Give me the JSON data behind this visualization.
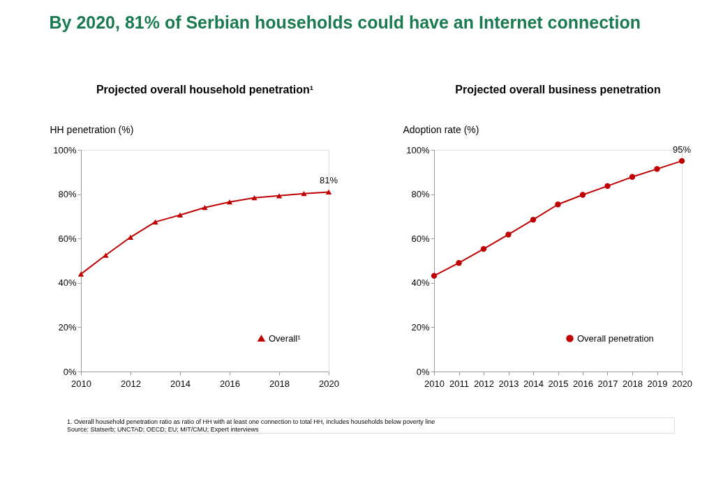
{
  "chart_data": [
    {
      "type": "line",
      "title": "Projected overall household penetration¹",
      "ylabel": "HH penetration (%)",
      "x": [
        2010,
        2011,
        2012,
        2013,
        2014,
        2015,
        2016,
        2017,
        2018,
        2019,
        2020
      ],
      "series": [
        {
          "name": "Overall¹",
          "color": "#c00000",
          "values": [
            44,
            52.5,
            60.6,
            67.5,
            70.6,
            74,
            76.5,
            78.4,
            79.3,
            80.3,
            81
          ],
          "value_labels": [
            null,
            null,
            null,
            null,
            null,
            null,
            null,
            null,
            null,
            null,
            "81%"
          ]
        }
      ],
      "xlim": [
        2010,
        2020
      ],
      "xticks": [
        2010,
        2012,
        2014,
        2016,
        2018,
        2020
      ],
      "ylim": [
        0,
        100
      ],
      "yticks": [
        {
          "value": 0,
          "label": "0%"
        },
        {
          "value": 20,
          "label": "20%"
        },
        {
          "value": 40,
          "label": "40%"
        },
        {
          "value": 60,
          "label": "60%"
        },
        {
          "value": 80,
          "label": "80%"
        },
        {
          "value": 100,
          "label": "100%"
        }
      ],
      "marker": "triangle",
      "line_style": "solid",
      "grid": false,
      "legend": "bottom right",
      "annotations": [
        "By 2020, 81% of Serbian households could have an Internet connection",
        "1. Overall household penetration ratio as ratio of HH with at least one connection to total HH, includes households below poverty line",
        "Source: Statserb; UNCTAD; OECD; EU; MIT/CMU; Expert interviews"
      ]
    },
    {
      "type": "line",
      "title": "Projected overall business penetration",
      "ylabel": "Adoption rate (%)",
      "x": [
        2010,
        2011,
        2012,
        2013,
        2014,
        2015,
        2016,
        2017,
        2018,
        2019,
        2020
      ],
      "series": [
        {
          "name": "Overall penetration",
          "color": "#c00000",
          "values": [
            43.2,
            49,
            55.3,
            61.8,
            68.5,
            75.4,
            79.7,
            83.7,
            87.8,
            91.4,
            95
          ],
          "value_labels": [
            null,
            null,
            null,
            null,
            null,
            null,
            null,
            null,
            null,
            null,
            "95%"
          ]
        }
      ],
      "xlim": [
        2010,
        2020
      ],
      "xticks": [
        2010,
        2011,
        2012,
        2013,
        2014,
        2015,
        2016,
        2017,
        2018,
        2019,
        2020
      ],
      "ylim": [
        0,
        100
      ],
      "yticks": [
        {
          "value": 0,
          "label": "0%"
        },
        {
          "value": 20,
          "label": "20%"
        },
        {
          "value": 40,
          "label": "40%"
        },
        {
          "value": 60,
          "label": "60%"
        },
        {
          "value": 80,
          "label": "80%"
        },
        {
          "value": 100,
          "label": "100%"
        }
      ],
      "marker": "circle",
      "line_style": "solid",
      "grid": false,
      "legend": "bottom right"
    }
  ]
}
